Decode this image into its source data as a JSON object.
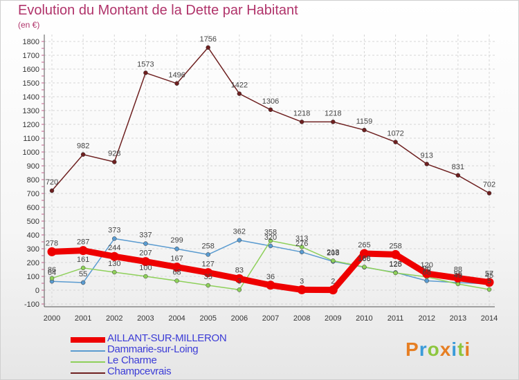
{
  "title": "Evolution du Montant de la Dette par Habitant",
  "subtitle": "(en €)",
  "brand": {
    "text": "Proxiti",
    "colors": [
      "#e67e22",
      "#3a9bd9",
      "#8dc63f",
      "#e67e22",
      "#3a9bd9",
      "#8dc63f",
      "#e67e22"
    ]
  },
  "chart_data": {
    "type": "line",
    "x": [
      "2000",
      "2001",
      "2002",
      "2003",
      "2004",
      "2005",
      "2006",
      "2007",
      "2008",
      "2009",
      "2010",
      "2011",
      "2012",
      "2013",
      "2014"
    ],
    "ylim": [
      -100,
      1800
    ],
    "yticks": [
      "-100",
      "0",
      "100",
      "200",
      "300",
      "400",
      "500",
      "600",
      "700",
      "800",
      "900",
      "1000",
      "1100",
      "1200",
      "1300",
      "1400",
      "1500",
      "1600",
      "1700",
      "1800"
    ],
    "grid": true,
    "legend_position": "bottom-left",
    "series": [
      {
        "name": "AILLANT-SUR-MILLERON",
        "color": "#ee0000",
        "values": [
          278,
          287,
          244,
          207,
          167,
          127,
          83,
          36,
          3,
          2,
          265,
          258,
          120,
          88,
          57
        ],
        "labels": [
          "278",
          "287",
          "244",
          "207",
          "167",
          "127",
          "83",
          "36",
          "3",
          "2",
          "265",
          "258",
          "120",
          "88",
          "57"
        ]
      },
      {
        "name": "Dammarie-sur-Loing",
        "color": "#5a9bd0",
        "values": [
          64,
          55,
          373,
          337,
          299,
          258,
          362,
          320,
          276,
          208,
          166,
          128,
          68,
          55,
          45
        ],
        "labels": [
          "64",
          "55",
          "373",
          "337",
          "299",
          "258",
          "362",
          "320",
          "276",
          "208",
          "166",
          "128",
          "68",
          "55",
          "45"
        ]
      },
      {
        "name": "Le Charme",
        "color": "#8ed05a",
        "values": [
          86,
          161,
          130,
          100,
          68,
          35,
          3,
          358,
          313,
          213,
          168,
          125,
          96,
          45,
          5
        ],
        "labels": [
          "86",
          "161",
          "130",
          "100",
          "68",
          "35",
          "3",
          "358",
          "313",
          "213",
          "168",
          "125",
          "96",
          "45",
          "5"
        ]
      },
      {
        "name": "Champcevrais",
        "color": "#6e2020",
        "values": [
          720,
          982,
          928,
          1573,
          1496,
          1756,
          1422,
          1306,
          1218,
          1218,
          1159,
          1072,
          913,
          831,
          702
        ],
        "labels": [
          "720",
          "982",
          "928",
          "1573",
          "1496",
          "1756",
          "1422",
          "1306",
          "1218",
          "1218",
          "1159",
          "1072",
          "913",
          "831",
          "702"
        ]
      }
    ]
  }
}
